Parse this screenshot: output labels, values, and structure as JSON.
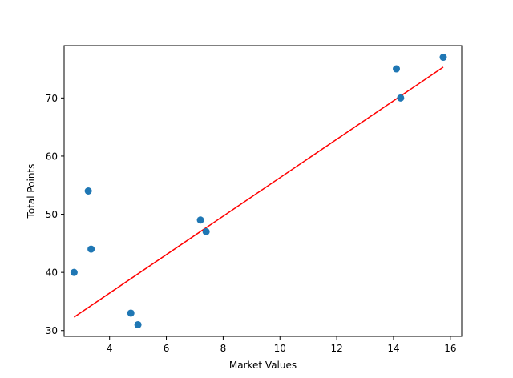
{
  "chart_data": {
    "type": "scatter",
    "title": "",
    "xlabel": "Market Values",
    "ylabel": "Total Points",
    "xlim": [
      2.4,
      16.4
    ],
    "ylim": [
      29,
      79
    ],
    "xticks": [
      4,
      6,
      8,
      10,
      12,
      14,
      16
    ],
    "yticks": [
      30,
      40,
      50,
      60,
      70
    ],
    "grid": false,
    "series": [
      {
        "type": "scatter",
        "color": "#1f77b4",
        "points": [
          {
            "x": 2.75,
            "y": 40
          },
          {
            "x": 3.25,
            "y": 54
          },
          {
            "x": 3.35,
            "y": 44
          },
          {
            "x": 4.75,
            "y": 33
          },
          {
            "x": 5.0,
            "y": 31
          },
          {
            "x": 7.2,
            "y": 49
          },
          {
            "x": 7.4,
            "y": 47
          },
          {
            "x": 14.1,
            "y": 75
          },
          {
            "x": 14.25,
            "y": 70
          },
          {
            "x": 15.75,
            "y": 77
          }
        ]
      },
      {
        "type": "line",
        "color": "#ff0000",
        "points": [
          {
            "x": 2.75,
            "y": 32.3
          },
          {
            "x": 15.75,
            "y": 75.3
          }
        ]
      }
    ]
  }
}
